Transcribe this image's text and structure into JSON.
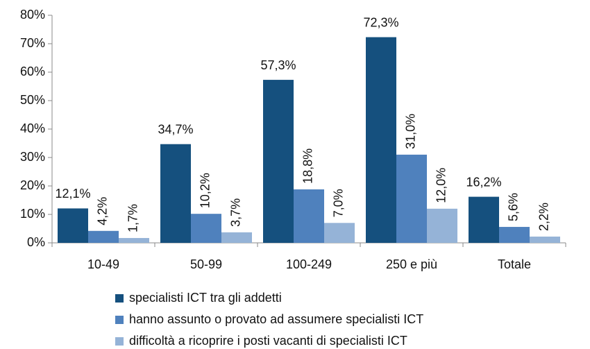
{
  "chart_data": {
    "type": "bar",
    "categories": [
      "10-49",
      "50-99",
      "100-249",
      "250 e più",
      "Totale"
    ],
    "series": [
      {
        "name": "specialisti ICT tra gli addetti",
        "color": "#15507e",
        "values": [
          12.1,
          34.7,
          57.3,
          72.3,
          16.2
        ],
        "value_labels": [
          "12,1%",
          "34,7%",
          "57,3%",
          "72,3%",
          "16,2%"
        ]
      },
      {
        "name": "hanno assunto o provato ad assumere specialisti ICT",
        "color": "#4f81bd",
        "values": [
          4.2,
          10.2,
          18.8,
          31.0,
          5.6
        ],
        "value_labels": [
          "4,2%",
          "10,2%",
          "18,8%",
          "31,0%",
          "5,6%"
        ]
      },
      {
        "name": "difficoltà a ricoprire i posti vacanti di specialisti ICT",
        "color": "#95b3d7",
        "values": [
          1.7,
          3.7,
          7.0,
          12.0,
          2.2
        ],
        "value_labels": [
          "1,7%",
          "3,7%",
          "7,0%",
          "12,0%",
          "2,2%"
        ]
      }
    ],
    "ylim": [
      0,
      80
    ],
    "yticks": [
      {
        "value": 0,
        "label": "0%"
      },
      {
        "value": 10,
        "label": "10%"
      },
      {
        "value": 20,
        "label": "20%"
      },
      {
        "value": 30,
        "label": "30%"
      },
      {
        "value": 40,
        "label": "40%"
      },
      {
        "value": 50,
        "label": "50%"
      },
      {
        "value": 60,
        "label": "60%"
      },
      {
        "value": 70,
        "label": "70%"
      },
      {
        "value": 80,
        "label": "80%"
      }
    ],
    "legend": "bottom"
  }
}
